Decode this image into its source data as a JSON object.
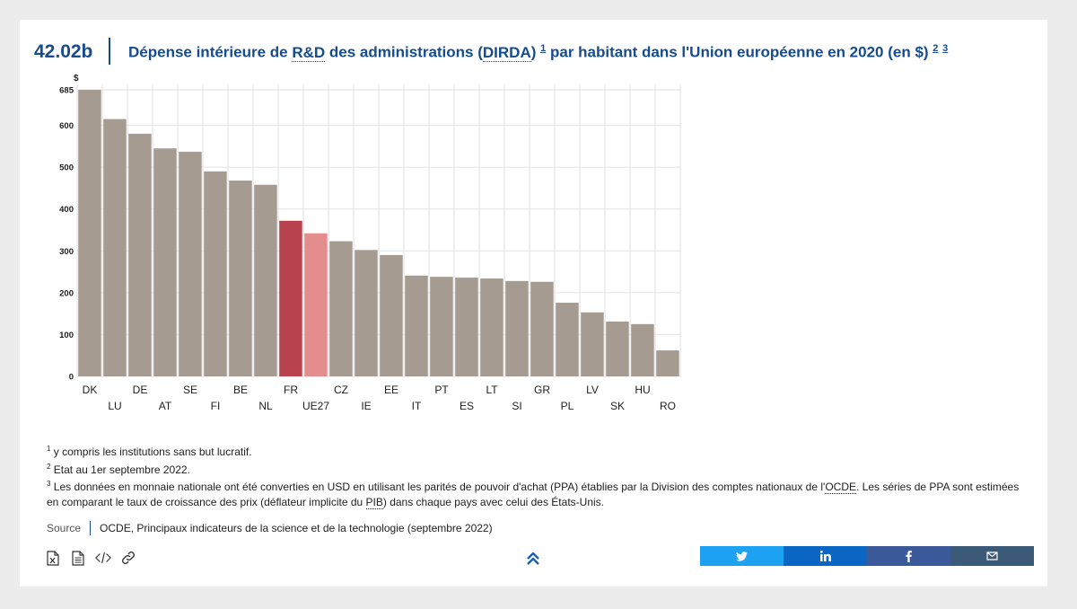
{
  "header": {
    "figure_id": "42.02b",
    "title_part1": "Dépense intérieure de ",
    "title_abbr1": "R&D",
    "title_part2": " des administrations (",
    "title_abbr2": "DIRDA",
    "title_part3": ")",
    "title_sup1": "1",
    "title_part4": " par habitant dans l'Union européenne en 2020 (en $)",
    "title_sup2": "2",
    "title_sup3": "3"
  },
  "chart_data": {
    "type": "bar",
    "ylabel": "$",
    "ylim": [
      0,
      685
    ],
    "yticks": [
      0,
      100,
      200,
      300,
      400,
      500,
      600,
      685
    ],
    "grid": true,
    "categories": [
      "DK",
      "LU",
      "DE",
      "AT",
      "SE",
      "FI",
      "BE",
      "NL",
      "FR",
      "UE27",
      "CZ",
      "IE",
      "EE",
      "IT",
      "PT",
      "ES",
      "LT",
      "SI",
      "GR",
      "PL",
      "LV",
      "SK",
      "HU",
      "RO"
    ],
    "values": [
      685,
      615,
      580,
      545,
      537,
      490,
      468,
      458,
      372,
      342,
      323,
      302,
      290,
      241,
      238,
      236,
      234,
      228,
      226,
      176,
      153,
      131,
      125,
      62
    ],
    "colors": {
      "default": "#a69b90",
      "highlight_FR": "#b8424e",
      "highlight_UE27": "#e48d8d",
      "grid": "#e2e2e2",
      "axis_text": "#1e1e1e"
    }
  },
  "notes": {
    "n1_sup": "1",
    "n1_text": " y compris les institutions sans but lucratif.",
    "n2_sup": "2",
    "n2_text": " Etat au 1er septembre 2022.",
    "n3_sup": "3",
    "n3_text_a": " Les données en monnaie nationale ont été converties en USD en utilisant les parités de pouvoir d'achat (PPA) établies par la Division des comptes nationaux de l'",
    "n3_abbr1": "OCDE",
    "n3_text_b": ". Les séries de PPA sont estimées en comparant le taux de croissance des prix (déflateur implicite du ",
    "n3_abbr2": "PIB",
    "n3_text_c": ") dans chaque pays avec celui des États-Unis."
  },
  "source": {
    "label": "Source",
    "text": "OCDE, Principaux indicateurs de la science et de la technologie (septembre 2022)"
  },
  "tools": {
    "icons": [
      "excel-file-icon",
      "document-icon",
      "embed-code-icon",
      "link-icon"
    ]
  },
  "share": {
    "buttons": [
      {
        "name": "twitter",
        "color": "#1da1f2"
      },
      {
        "name": "linkedin",
        "color": "#0a66c2"
      },
      {
        "name": "facebook",
        "color": "#3b5998"
      },
      {
        "name": "email",
        "color": "#3a5a78"
      }
    ]
  }
}
